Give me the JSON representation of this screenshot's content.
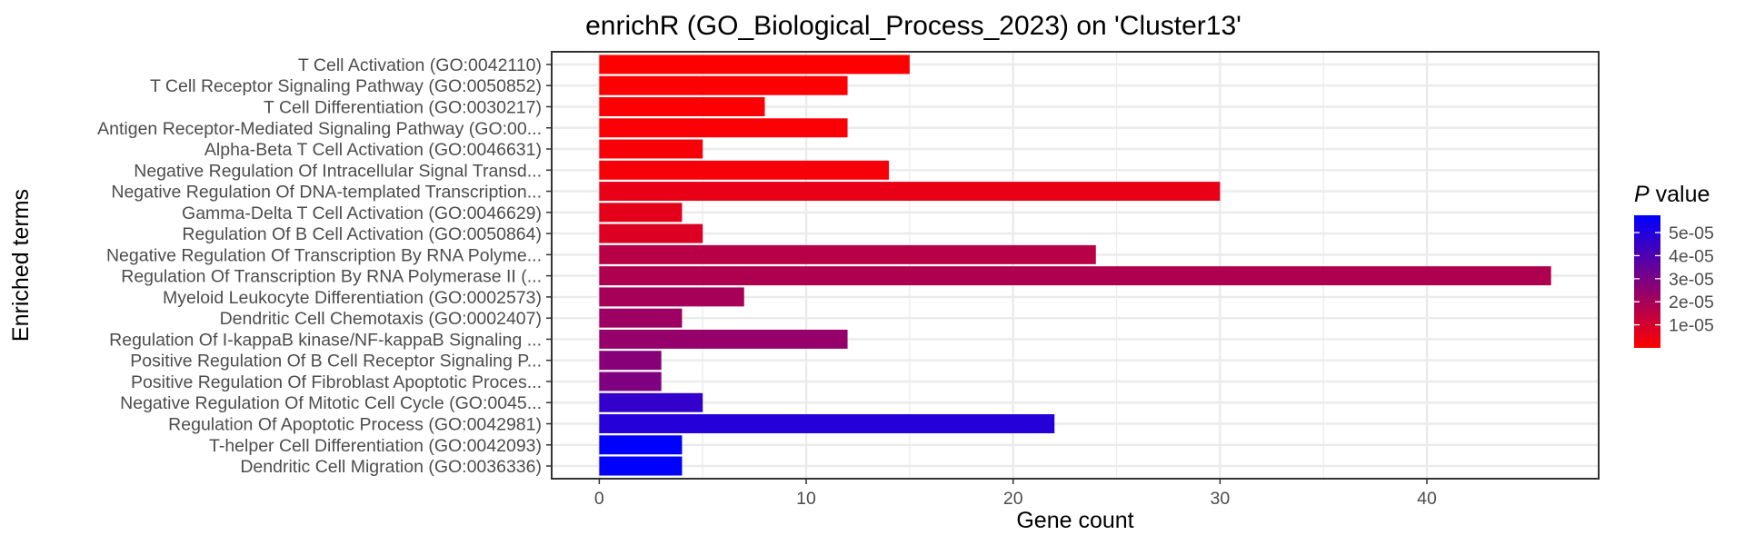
{
  "chart_data": {
    "type": "bar",
    "orientation": "horizontal",
    "title": "enrichR (GO_Biological_Process_2023) on 'Cluster13'",
    "xlabel": "Gene count",
    "ylabel": "Enriched terms",
    "xlim": [
      -2.3,
      48.3
    ],
    "xticks": [
      0,
      10,
      20,
      30,
      40
    ],
    "grid": true,
    "legend": {
      "title_italic": "P",
      "title_rest": " value",
      "position": "right",
      "range": [
        0,
        5.75e-05
      ],
      "ticks": [
        1e-05,
        2e-05,
        3e-05,
        4e-05,
        5e-05
      ],
      "tick_labels": [
        "1e-05",
        "2e-05",
        "3e-05",
        "4e-05",
        "5e-05"
      ],
      "low_color": "#ff0000",
      "high_color": "#0000ff"
    },
    "categories": [
      "T Cell Activation (GO:0042110)",
      "T Cell Receptor Signaling Pathway (GO:0050852)",
      "T Cell Differentiation (GO:0030217)",
      "Antigen Receptor-Mediated Signaling Pathway (GO:00...",
      "Alpha-Beta T Cell Activation (GO:0046631)",
      "Negative Regulation Of Intracellular Signal Transd...",
      "Negative Regulation Of DNA-templated Transcription...",
      "Gamma-Delta T Cell Activation (GO:0046629)",
      "Regulation Of B Cell Activation (GO:0050864)",
      "Negative Regulation Of Transcription By RNA Polyme...",
      "Regulation Of Transcription By RNA Polymerase II (...",
      "Myeloid Leukocyte Differentiation (GO:0002573)",
      "Dendritic Cell Chemotaxis (GO:0002407)",
      "Regulation Of I-kappaB kinase/NF-kappaB Signaling ...",
      "Positive Regulation Of B Cell Receptor Signaling P...",
      "Positive Regulation Of Fibroblast Apoptotic Proces...",
      "Negative Regulation Of Mitotic Cell Cycle (GO:0045...",
      "Regulation Of Apoptotic Process (GO:0042981)",
      "T-helper Cell Differentiation (GO:0042093)",
      "Dendritic Cell Migration (GO:0036336)"
    ],
    "values": [
      15,
      12,
      8,
      12,
      5,
      14,
      30,
      4,
      5,
      24,
      46,
      7,
      4,
      12,
      3,
      3,
      5,
      22,
      4,
      4
    ],
    "pvalues": [
      1e-07,
      2e-07,
      6e-07,
      8e-07,
      1.5e-06,
      2e-06,
      5e-06,
      6e-06,
      8e-06,
      1.6e-05,
      1.8e-05,
      2e-05,
      2.2e-05,
      2.4e-05,
      2.7e-05,
      2.9e-05,
      4.6e-05,
      4.9e-05,
      5.75e-05,
      5.75e-05
    ]
  }
}
